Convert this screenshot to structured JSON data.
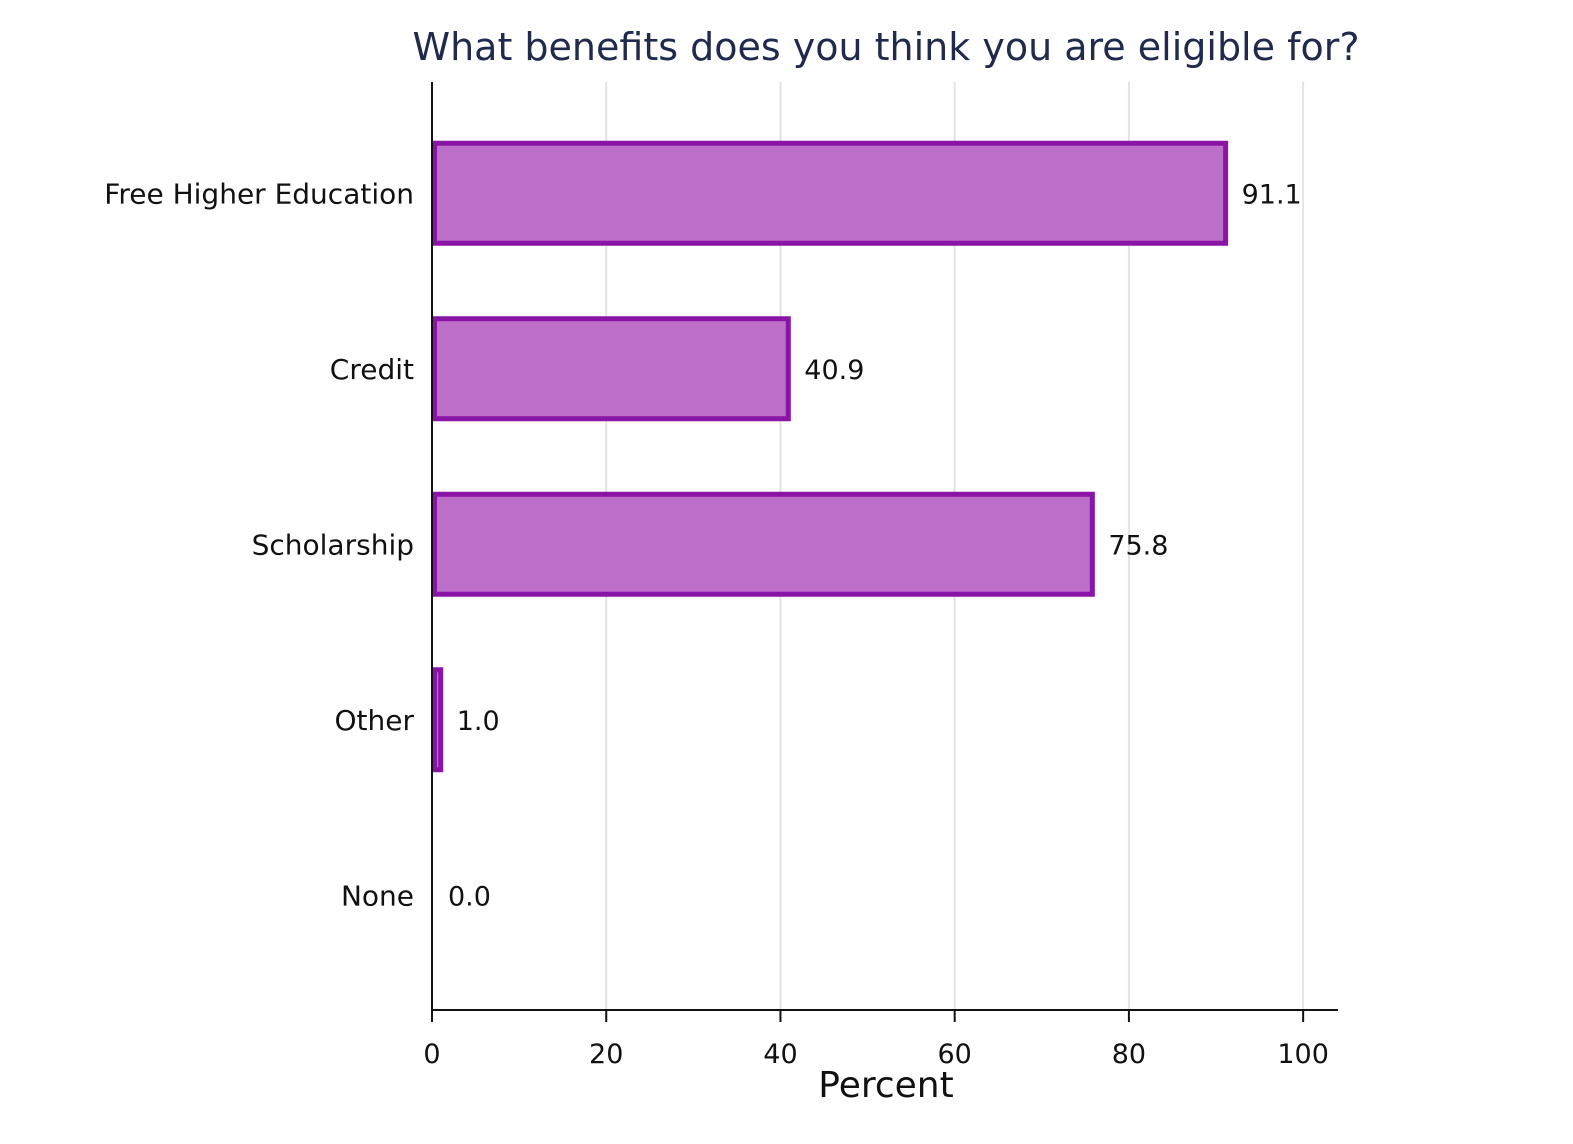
{
  "chart_data": {
    "type": "bar",
    "orientation": "horizontal",
    "title": "What benefits does you think you are eligible for?",
    "xlabel": "Percent",
    "ylabel": "",
    "categories": [
      "Free Higher Education",
      "Credit",
      "Scholarship",
      "Other",
      "None"
    ],
    "values": [
      91.1,
      40.9,
      75.8,
      1.0,
      0.0
    ],
    "value_labels": [
      "91.1",
      "40.9",
      "75.8",
      "1.0",
      "0.0"
    ],
    "xlim": [
      0,
      104
    ],
    "xticks": [
      0,
      20,
      40,
      60,
      80,
      100
    ],
    "xtick_labels": [
      "0",
      "20",
      "40",
      "60",
      "80",
      "100"
    ],
    "grid": "vertical",
    "legend": "none",
    "colors": {
      "bar_fill": "#bb6fc8",
      "bar_edge": "#8a14a6",
      "title": "#1f2a4d",
      "grid": "#e3e3e3",
      "axis": "#111111"
    }
  }
}
